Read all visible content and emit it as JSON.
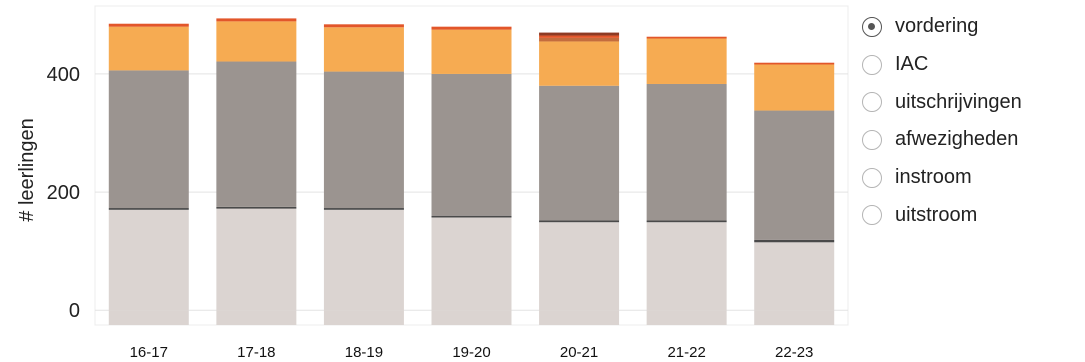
{
  "chart_data": {
    "type": "bar",
    "stacked": true,
    "ylabel": "# leerlingen",
    "yticks": [
      0,
      200,
      400
    ],
    "ylim": [
      -25,
      515
    ],
    "grid": true,
    "categories": [
      "16-17",
      "17-18",
      "18-19",
      "19-20",
      "20-21",
      "21-22",
      "22-23"
    ],
    "series": [
      {
        "color": "#dbd4d1",
        "values": [
          170,
          172,
          170,
          157,
          149,
          149,
          115
        ]
      },
      {
        "color": "#4a4a4a",
        "values": [
          3,
          3,
          3,
          3,
          3,
          3,
          4
        ]
      },
      {
        "color": "#9b9490",
        "values": [
          233,
          246,
          231,
          240,
          228,
          231,
          219
        ]
      },
      {
        "color": "#f6ab52",
        "values": [
          74,
          68,
          75,
          75,
          75,
          77,
          78
        ]
      },
      {
        "color": "#c46c3d",
        "values": [
          0,
          0,
          0,
          0,
          6,
          0,
          0
        ]
      },
      {
        "color": "#e2562a",
        "values": [
          5,
          5,
          5,
          5,
          4,
          3,
          3
        ]
      },
      {
        "color": "#8e3a23",
        "values": [
          0,
          0,
          0,
          0,
          5,
          0,
          0
        ]
      }
    ]
  },
  "legend": {
    "selected": "vordering",
    "options": [
      {
        "label": "vordering"
      },
      {
        "label": "IAC"
      },
      {
        "label": "uitschrijvingen"
      },
      {
        "label": "afwezigheden"
      },
      {
        "label": "instroom"
      },
      {
        "label": "uitstroom"
      }
    ]
  }
}
